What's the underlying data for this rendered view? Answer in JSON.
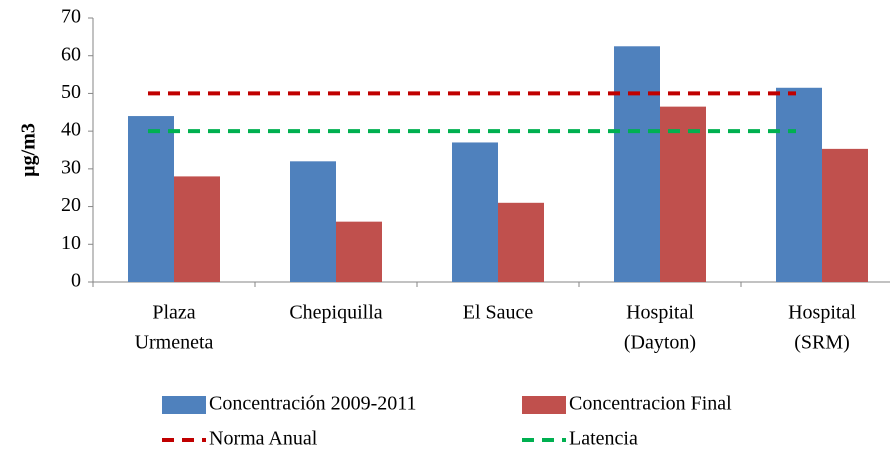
{
  "chart_data": {
    "type": "bar",
    "y_label": "µg/m3",
    "categories": [
      [
        "Plaza",
        "Urmeneta"
      ],
      [
        "Chepiquilla"
      ],
      [
        "El Sauce"
      ],
      [
        "Hospital",
        "(Dayton)"
      ],
      [
        "Hospital",
        "(SRM)"
      ]
    ],
    "series": [
      {
        "name": "Concentración 2009-2011",
        "color": "#4f81bd",
        "type": "bar",
        "values": [
          44,
          32,
          37,
          62.5,
          51.5
        ]
      },
      {
        "name": "Concentracion Final",
        "color": "#c0504d",
        "type": "bar",
        "values": [
          28,
          16,
          21,
          46.5,
          35.3
        ]
      },
      {
        "name": "Norma Anual",
        "color": "#c00000",
        "type": "dashed-line",
        "values": [
          50,
          50,
          50,
          50,
          50
        ]
      },
      {
        "name": "Latencia",
        "color": "#00b050",
        "type": "dashed-line",
        "values": [
          40,
          40,
          40,
          40,
          40
        ]
      }
    ],
    "ylim": [
      0,
      70
    ],
    "yticks": [
      0,
      10,
      20,
      30,
      40,
      50,
      60,
      70
    ]
  }
}
